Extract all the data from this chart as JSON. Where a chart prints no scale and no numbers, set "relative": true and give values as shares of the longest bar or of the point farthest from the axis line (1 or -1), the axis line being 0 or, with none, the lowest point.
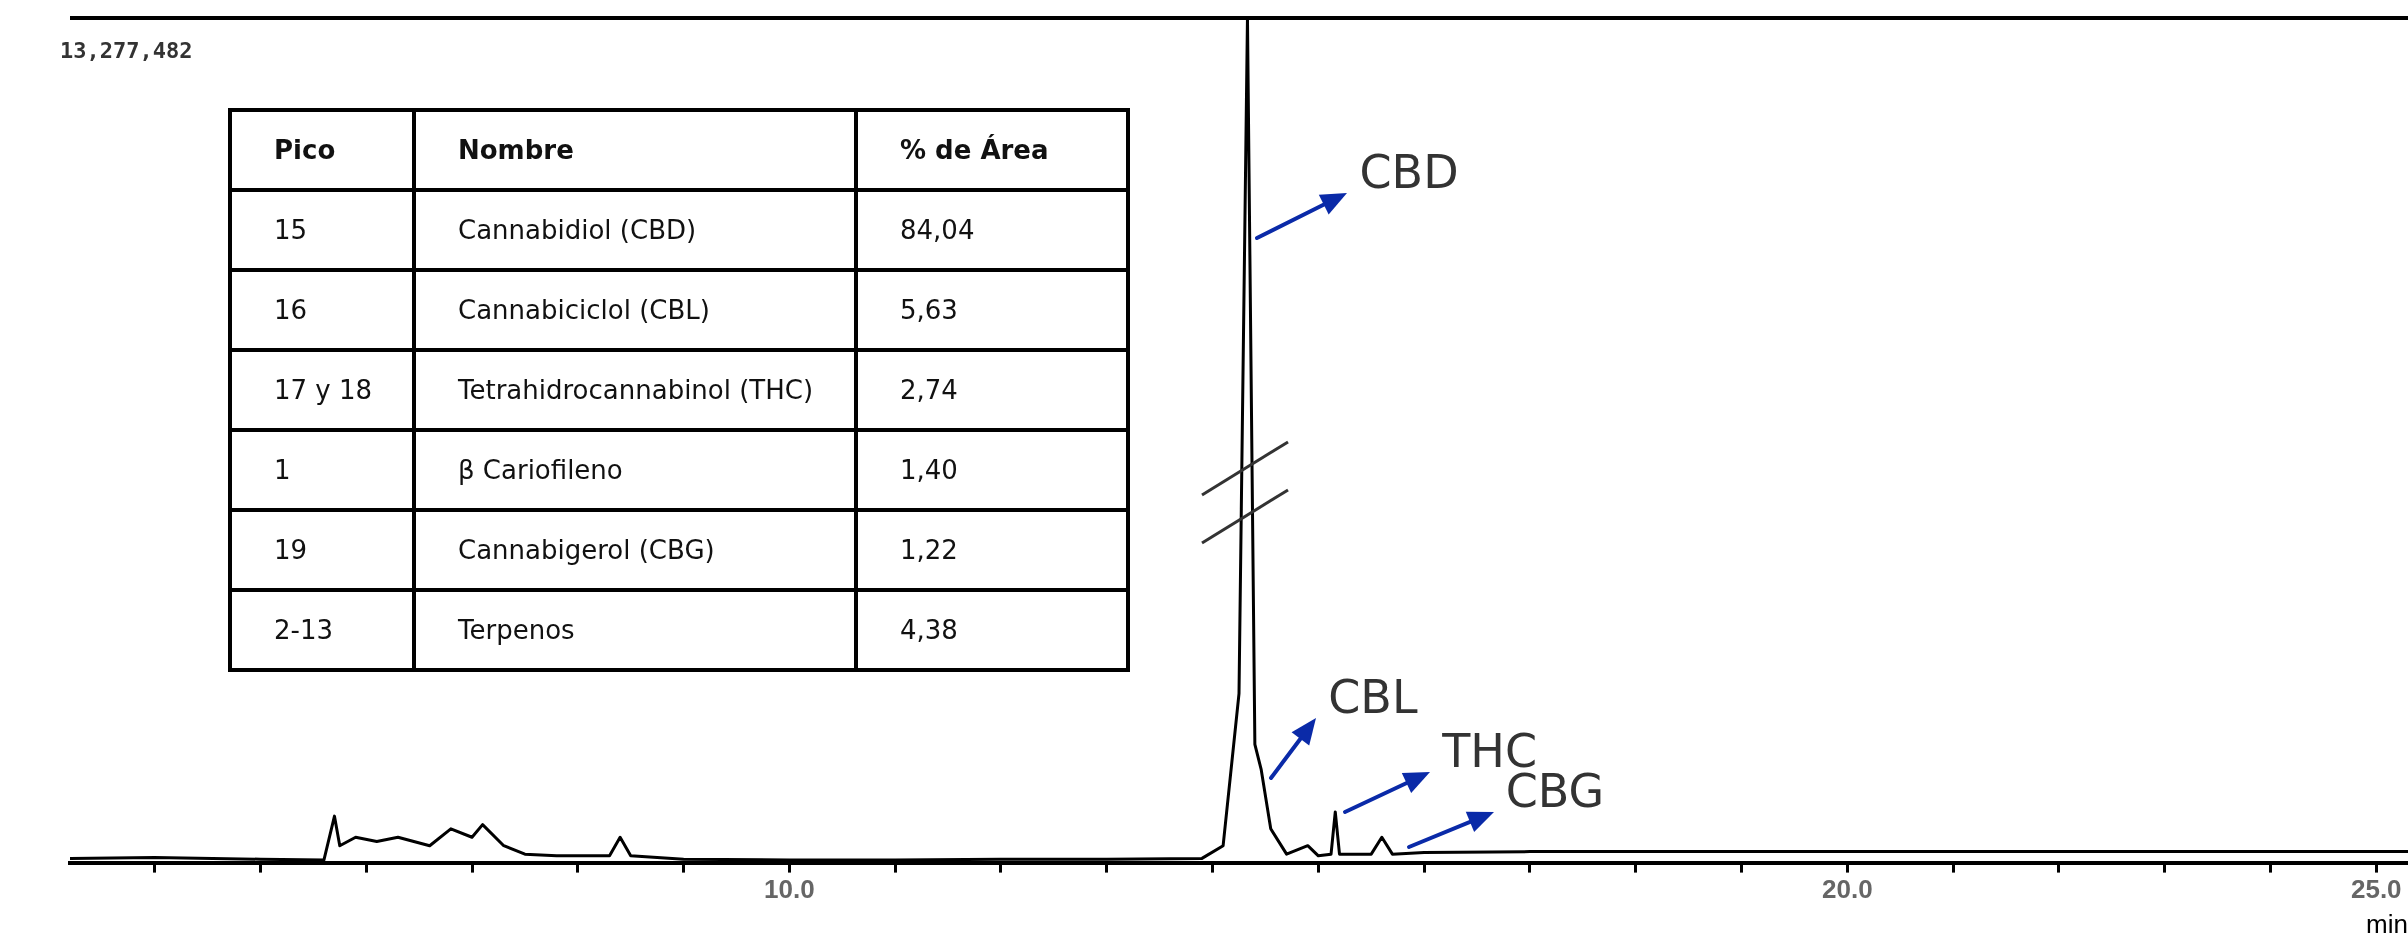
{
  "chart_data": {
    "type": "line",
    "relative": true,
    "xlabel": "min",
    "xlim": [
      3.2,
      25.3
    ],
    "xticks": [
      {
        "value": 4,
        "label": null
      },
      {
        "value": 5,
        "label": null
      },
      {
        "value": 6,
        "label": null
      },
      {
        "value": 7,
        "label": null
      },
      {
        "value": 8,
        "label": null
      },
      {
        "value": 9,
        "label": null
      },
      {
        "value": 10,
        "label": "10.0"
      },
      {
        "value": 11,
        "label": null
      },
      {
        "value": 12,
        "label": null
      },
      {
        "value": 13,
        "label": null
      },
      {
        "value": 14,
        "label": null
      },
      {
        "value": 15,
        "label": null
      },
      {
        "value": 16,
        "label": null
      },
      {
        "value": 17,
        "label": null
      },
      {
        "value": 18,
        "label": null
      },
      {
        "value": 19,
        "label": null
      },
      {
        "value": 20,
        "label": "20.0"
      },
      {
        "value": 21,
        "label": null
      },
      {
        "value": 22,
        "label": null
      },
      {
        "value": 23,
        "label": null
      },
      {
        "value": 24,
        "label": null
      },
      {
        "value": 25,
        "label": "25.0"
      }
    ],
    "grid": false,
    "legend": false,
    "marker": "none",
    "line_style": "solid",
    "series": [
      {
        "color": "#000000",
        "x": [
          3.2,
          4.0,
          5.0,
          5.6,
          5.7,
          5.75,
          5.9,
          6.1,
          6.3,
          6.6,
          6.8,
          7.0,
          7.1,
          7.3,
          7.5,
          7.8,
          8.3,
          8.4,
          8.5,
          9.0,
          10.0,
          11.0,
          12.0,
          13.0,
          13.9,
          14.1,
          14.25,
          14.33,
          14.4,
          14.46,
          14.55,
          14.7,
          14.9,
          15.0,
          15.12,
          15.16,
          15.2,
          15.5,
          15.6,
          15.7,
          16.0,
          17.0,
          20.0,
          23.0,
          25.3
        ],
        "values": [
          0.005,
          0.006,
          0.004,
          0.003,
          0.055,
          0.02,
          0.03,
          0.025,
          0.03,
          0.02,
          0.04,
          0.03,
          0.045,
          0.02,
          0.01,
          0.008,
          0.008,
          0.03,
          0.008,
          0.004,
          0.003,
          0.003,
          0.004,
          0.004,
          0.005,
          0.02,
          0.2,
          1,
          0.14,
          0.11,
          0.04,
          0.01,
          0.02,
          0.008,
          0.01,
          0.06,
          0.01,
          0.01,
          0.03,
          0.01,
          0.012,
          0.013,
          0.013,
          0.013,
          0.013
        ]
      }
    ],
    "annotations": [
      "13,277,482",
      "Pico",
      "Nombre",
      "% de Área",
      "15",
      "Cannabidiol (CBD)",
      "84,04",
      "16",
      "Cannabiciclol (CBL)",
      "5,63",
      "17 y 18",
      "Tetrahidrocannabinol (THC)",
      "2,74",
      "1",
      "β Cariofileno",
      "1,40",
      "19",
      "Cannabigerol (CBG)",
      "1,22",
      "2-13",
      "Terpenos",
      "4,38",
      {
        "text": "CBD",
        "x": 14.33,
        "y": 0.74
      },
      {
        "text": "CBL",
        "x": 14.46,
        "y": 0.1
      },
      {
        "text": "THC",
        "x": 15.16,
        "y": 0.06
      },
      {
        "text": "CBG",
        "x": 15.76,
        "y": 0.018
      }
    ]
  }
}
